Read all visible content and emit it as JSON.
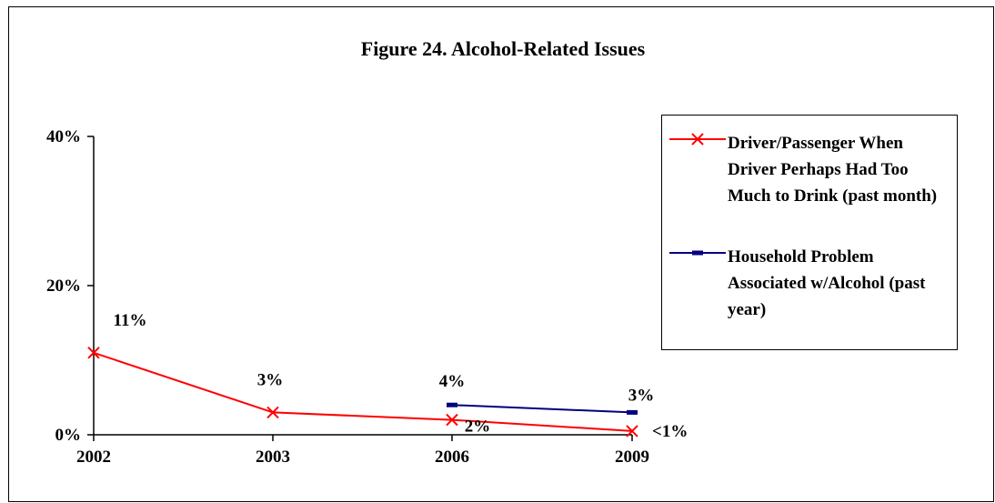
{
  "chart_data": {
    "type": "line",
    "title": "Figure 24. Alcohol-Related Issues",
    "xlabel": "",
    "ylabel": "",
    "categories": [
      "2002",
      "2003",
      "2006",
      "2009"
    ],
    "y_ticks": [
      "0%",
      "20%",
      "40%"
    ],
    "ylim": [
      0,
      40
    ],
    "grid": false,
    "legend_position": "right",
    "series": [
      {
        "name": "Driver/Passenger When Driver Perhaps Had Too Much to Drink (past month)",
        "values": [
          11,
          3,
          2,
          0.5
        ],
        "labels": [
          "11%",
          "3%",
          "2%",
          "<1%"
        ],
        "color": "#ff0000",
        "marker": "x-icon"
      },
      {
        "name": "Household Problem Associated w/Alcohol (past year)",
        "values": [
          null,
          null,
          4,
          3
        ],
        "labels": [
          "",
          "",
          "4%",
          "3%"
        ],
        "color": "#000080",
        "marker": "dash-icon"
      }
    ]
  }
}
